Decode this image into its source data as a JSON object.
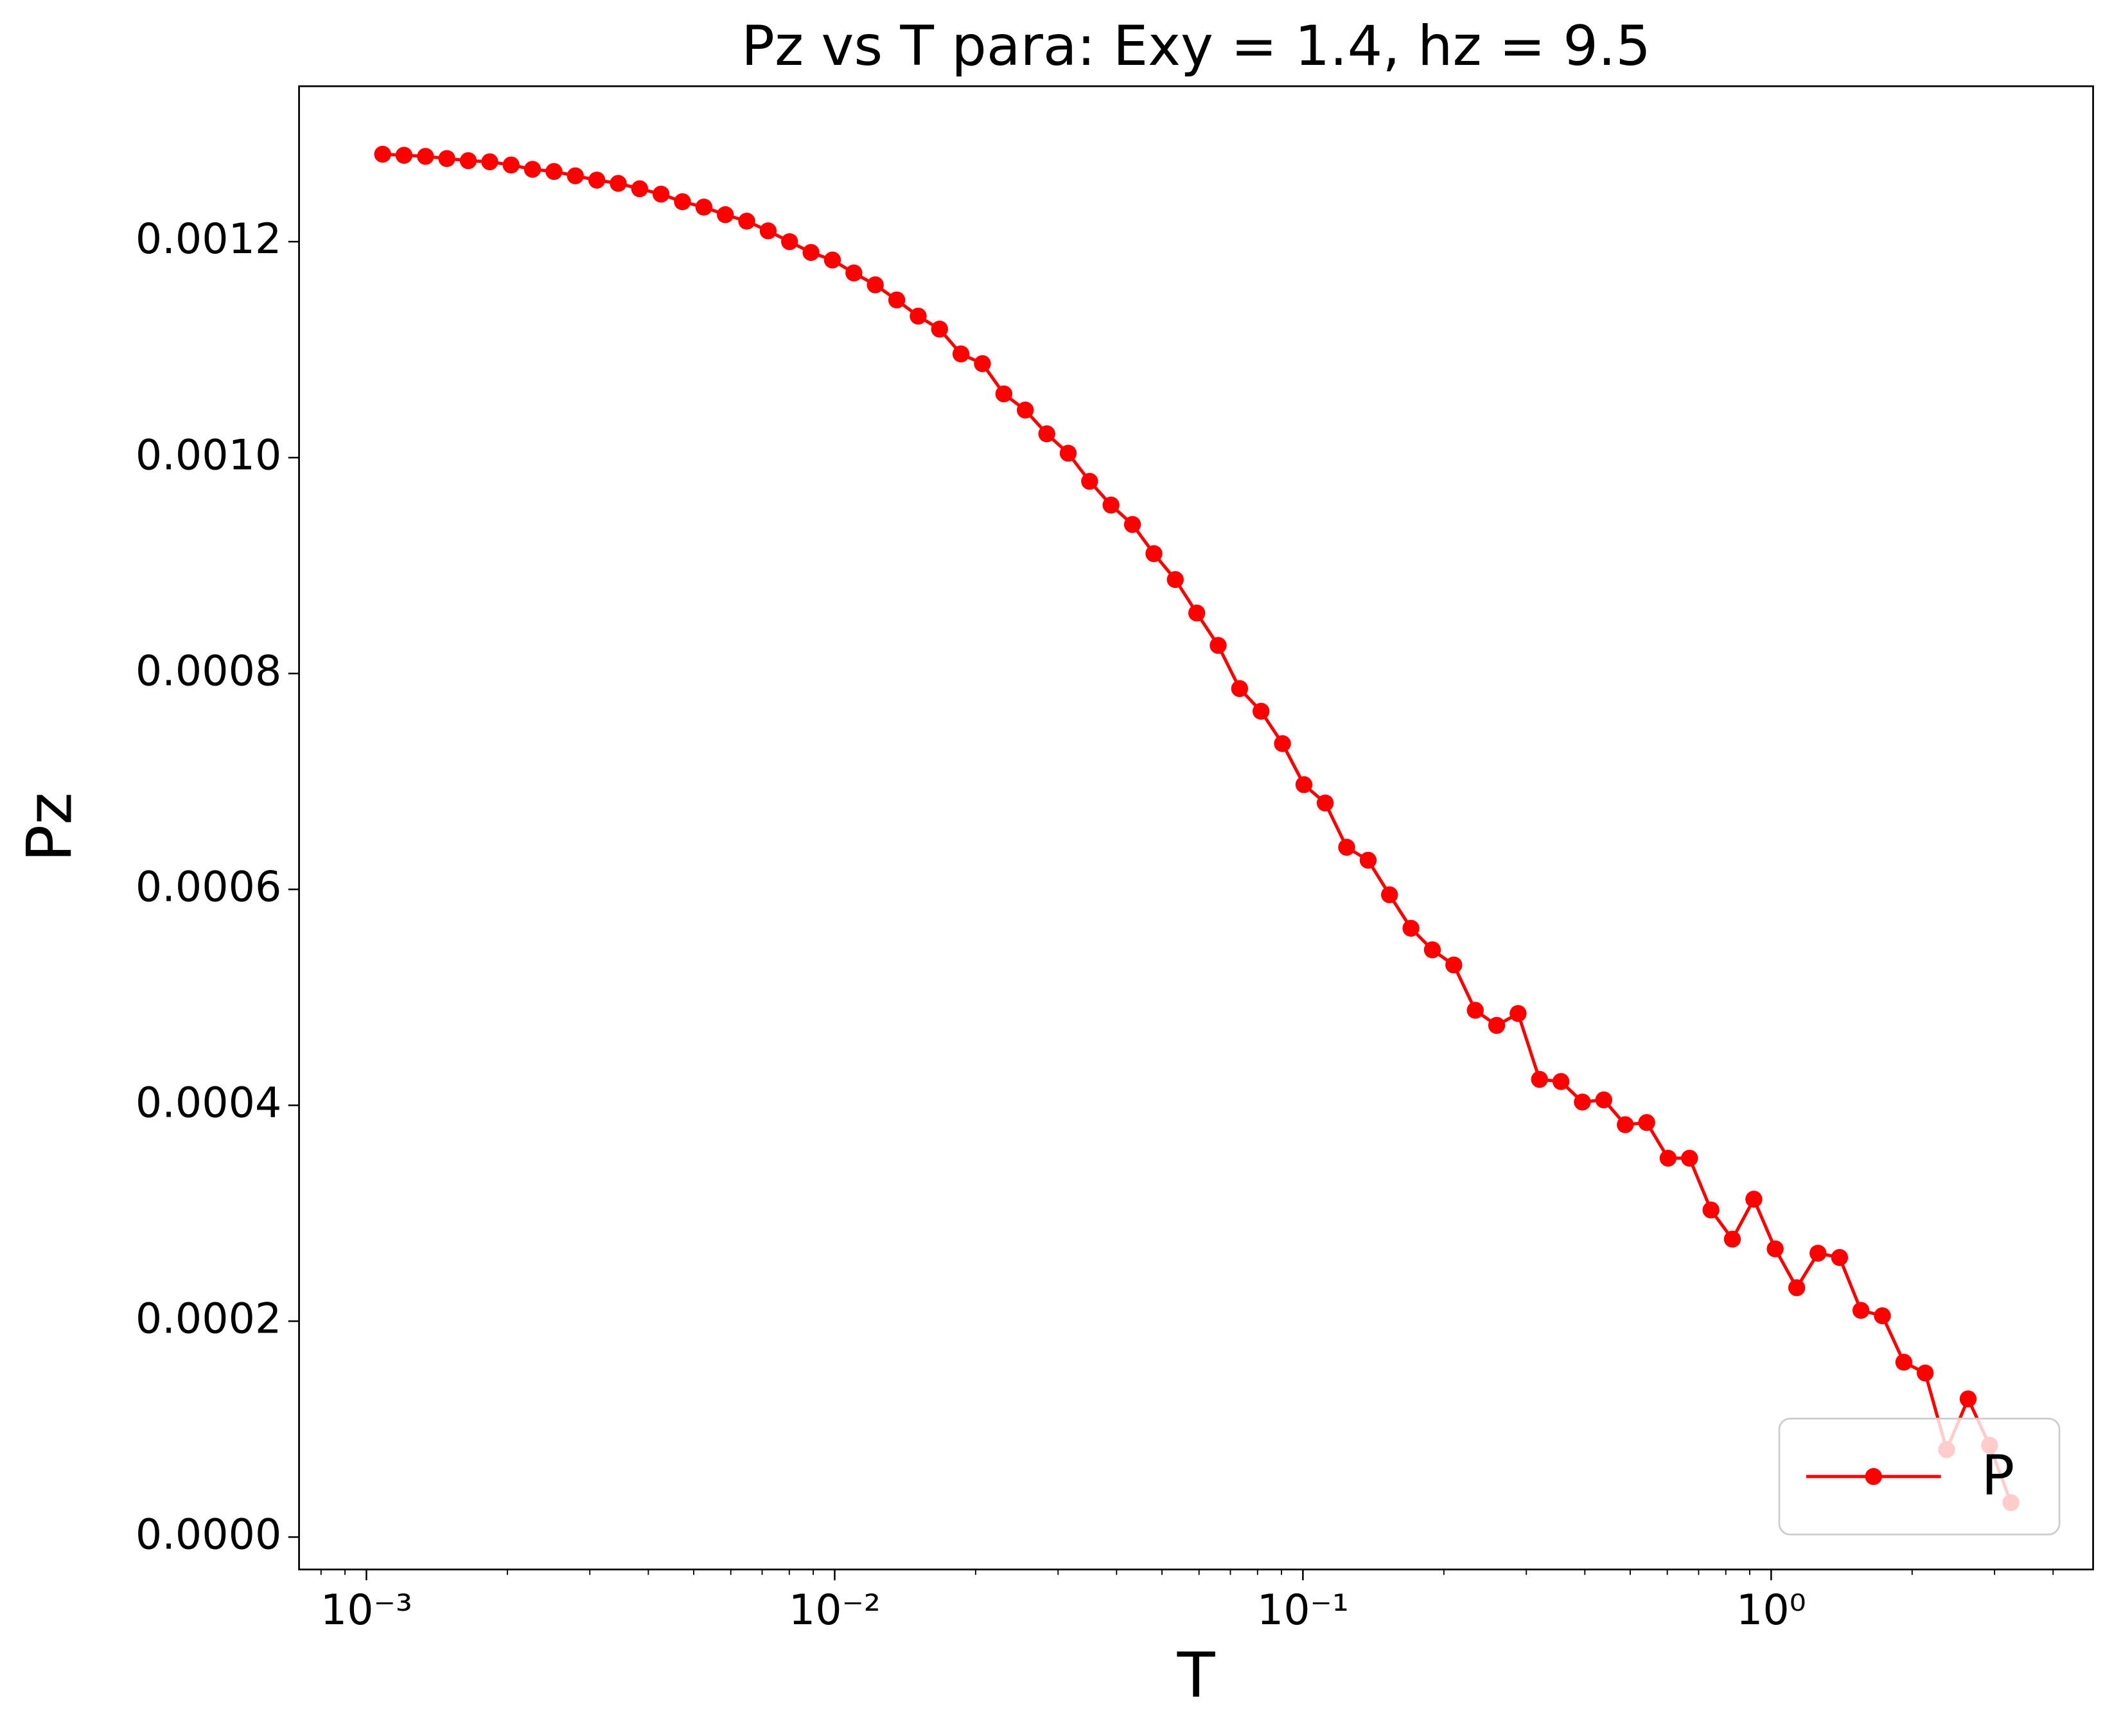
{
  "chart_data": {
    "type": "line",
    "title": "Pz vs T para: Exy = 1.4, hz = 9.5",
    "xlabel": "T",
    "ylabel": "Pz",
    "xscale": "log",
    "x": [
      0.001083,
      0.001203,
      0.001337,
      0.001485,
      0.00165,
      0.001834,
      0.002037,
      0.002263,
      0.002515,
      0.002794,
      0.003105,
      0.00345,
      0.003833,
      0.004258,
      0.004731,
      0.005257,
      0.005841,
      0.00649,
      0.00721,
      0.008011,
      0.008902,
      0.00989,
      0.01099,
      0.01221,
      0.01357,
      0.01508,
      0.01675,
      0.01861,
      0.02068,
      0.02298,
      0.02553,
      0.02838,
      0.03153,
      0.03503,
      0.03892,
      0.04325,
      0.04806,
      0.05339,
      0.05933,
      0.06592,
      0.07325,
      0.08138,
      0.09043,
      0.1005,
      0.1116,
      0.124,
      0.1378,
      0.1531,
      0.1701,
      0.189,
      0.21,
      0.2334,
      0.2593,
      0.2881,
      0.3201,
      0.3557,
      0.3952,
      0.4391,
      0.488,
      0.5422,
      0.6024,
      0.6693,
      0.7438,
      0.8264,
      0.9183,
      1.02,
      1.134,
      1.259,
      1.4,
      1.555,
      1.728,
      1.92,
      2.133,
      2.37,
      2.634,
      2.927,
      3.251
    ],
    "series": [
      {
        "name": "P",
        "color": "#ff0000",
        "values": [
          0.001281,
          0.00128,
          0.001279,
          0.001277,
          0.001275,
          0.001274,
          0.001271,
          0.001267,
          0.001265,
          0.001261,
          0.001257,
          0.001254,
          0.001249,
          0.001244,
          0.001237,
          0.001232,
          0.001225,
          0.001219,
          0.00121,
          0.0012,
          0.00119,
          0.001183,
          0.001171,
          0.00116,
          0.001146,
          0.001131,
          0.001119,
          0.001096,
          0.001087,
          0.001059,
          0.001044,
          0.001022,
          0.001004,
          0.000978,
          0.000956,
          0.000938,
          0.000911,
          0.000887,
          0.000856,
          0.000826,
          0.000786,
          0.000765,
          0.000735,
          0.000697,
          0.00068,
          0.000639,
          0.000627,
          0.000595,
          0.000564,
          0.000544,
          0.00053,
          0.000488,
          0.000474,
          0.000485,
          0.000424,
          0.000422,
          0.000403,
          0.000405,
          0.000382,
          0.000384,
          0.000351,
          0.000351,
          0.000303,
          0.000276,
          0.000313,
          0.000267,
          0.000231,
          0.000263,
          0.000259,
          0.00021,
          0.000205,
          0.000162,
          0.000152,
          8.1e-05,
          0.000128,
          8.5e-05,
          3.2e-05
        ]
      }
    ],
    "xlim": [
      0.000718,
      4.87
    ],
    "xticks": [
      {
        "value": 0.001,
        "label": "10⁻³"
      },
      {
        "value": 0.01,
        "label": "10⁻²"
      },
      {
        "value": 0.1,
        "label": "10⁻¹"
      },
      {
        "value": 1,
        "label": "10⁰"
      }
    ],
    "ylim": [
      -3e-05,
      0.001344
    ],
    "yticks": [
      {
        "value": 0,
        "label": "0.0000"
      },
      {
        "value": 0.0002,
        "label": "0.0002"
      },
      {
        "value": 0.0004,
        "label": "0.0004"
      },
      {
        "value": 0.0006,
        "label": "0.0006"
      },
      {
        "value": 0.0008,
        "label": "0.0008"
      },
      {
        "value": 0.001,
        "label": "0.0010"
      },
      {
        "value": 0.0012,
        "label": "0.0012"
      }
    ],
    "legend": "lower right",
    "markers": true,
    "grid": false
  }
}
